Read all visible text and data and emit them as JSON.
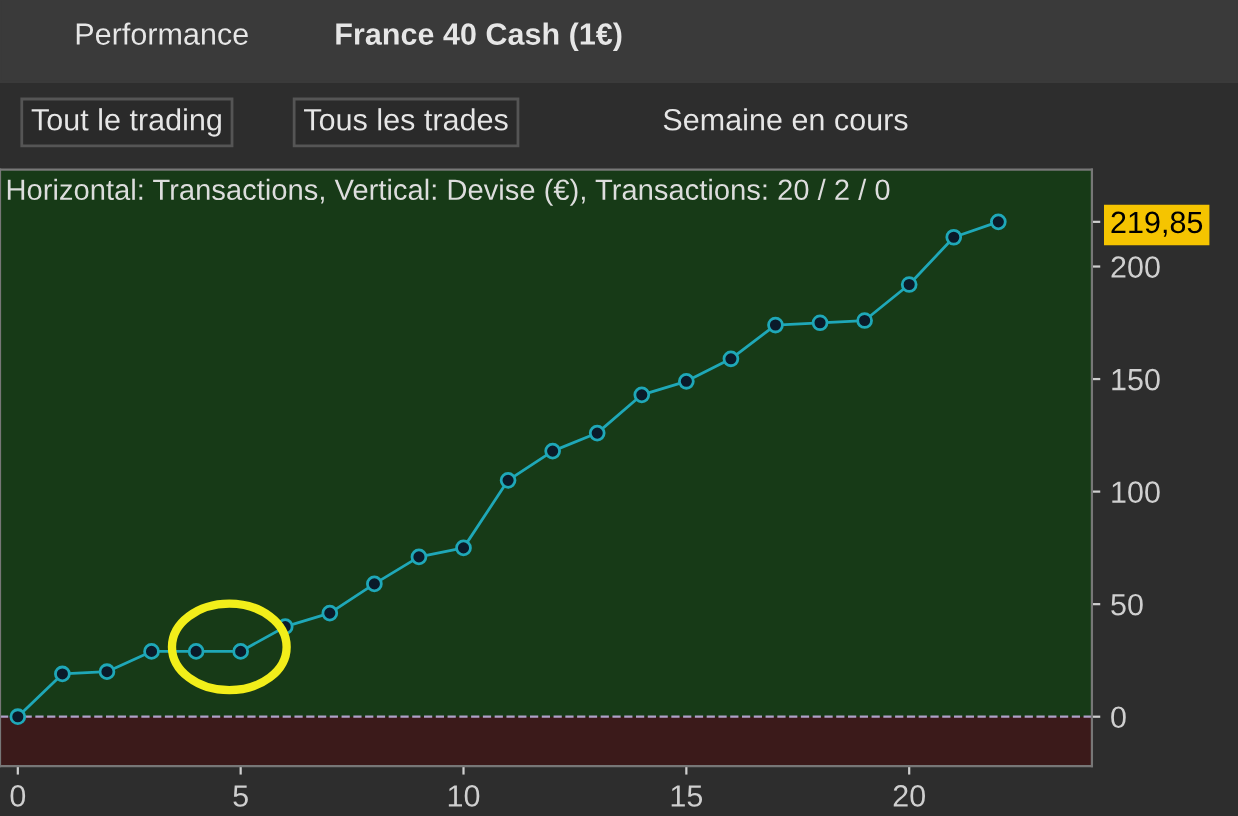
{
  "chart_data": {
    "type": "line",
    "title": "Horizontal: Transactions, Vertical: Devise (€), Transactions: 20 / 2 / 0",
    "annotations": [
      "Performance",
      "France 40 Cash (1€)",
      "Tout le trading",
      "Tous les trades",
      "Semaine en cours"
    ],
    "x": [
      0,
      1,
      2,
      3,
      4,
      5,
      6,
      7,
      8,
      9,
      10,
      11,
      12,
      13,
      14,
      15,
      16,
      17,
      18,
      19,
      20,
      21,
      22
    ],
    "series": [
      {
        "color": "#1fa8b8",
        "values": [
          0,
          19,
          20,
          29,
          29,
          29,
          40,
          46,
          59,
          71,
          75,
          105,
          118,
          126,
          143,
          149,
          159,
          174,
          175,
          176,
          192,
          213,
          219.85
        ]
      }
    ],
    "xlim": [
      -0.4,
      24.1
    ],
    "ylim": [
      -22,
      243
    ],
    "xticks": [
      0,
      5,
      10,
      15,
      20
    ],
    "yticks": [
      0,
      50,
      100,
      150,
      200,
      {
        "value": 219.85,
        "label": "219,85"
      }
    ],
    "ref_lines": [
      {
        "axis": "y",
        "value": 0,
        "color": "#b0a0c8",
        "line_style": "dashed"
      }
    ],
    "bands": [
      {
        "axis": "y",
        "from": -22,
        "to": 0,
        "color": "#3b1a1a"
      }
    ],
    "marker": "circle",
    "line_style": "solid",
    "grid": false
  }
}
